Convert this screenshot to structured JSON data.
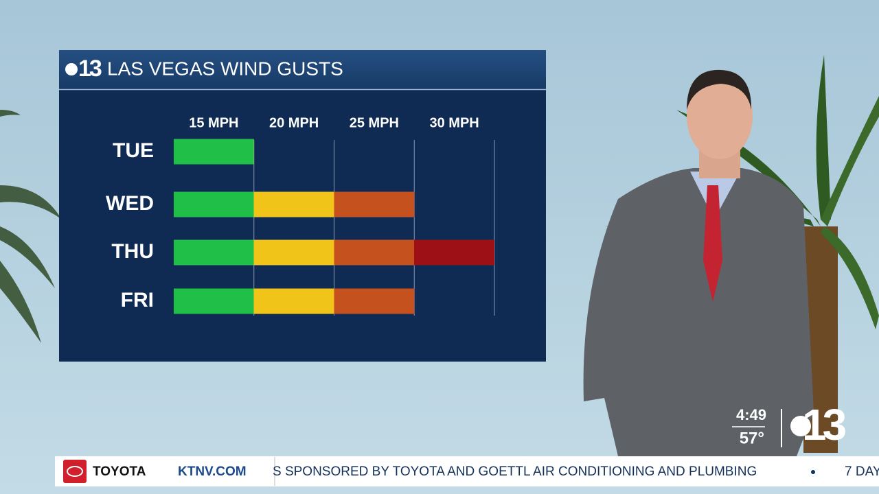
{
  "chart_data": {
    "type": "bar",
    "orientation": "horizontal",
    "title": "LAS VEGAS WIND GUSTS",
    "logo": "13",
    "categories": [
      "TUE",
      "WED",
      "THU",
      "FRI"
    ],
    "values": [
      15,
      25,
      30,
      25
    ],
    "xlim": [
      10,
      30
    ],
    "xticks": [
      {
        "value": 15,
        "label": "15 MPH"
      },
      {
        "value": 20,
        "label": "20 MPH"
      },
      {
        "value": 25,
        "label": "25 MPH"
      },
      {
        "value": 30,
        "label": "30 MPH"
      }
    ],
    "band_colors": [
      "#1fbf48",
      "#f0c418",
      "#c5511f",
      "#9c1016"
    ],
    "grid": true
  },
  "bug": {
    "time": "4:49",
    "temperature": "57°",
    "logo": "13"
  },
  "ticker": {
    "sponsor": "TOYOTA",
    "site": "KTNV.COM",
    "crawl": "S SPONSORED BY TOYOTA AND GOETTL AIR CONDITIONING AND PLUMBING",
    "next": "7 DAY"
  }
}
